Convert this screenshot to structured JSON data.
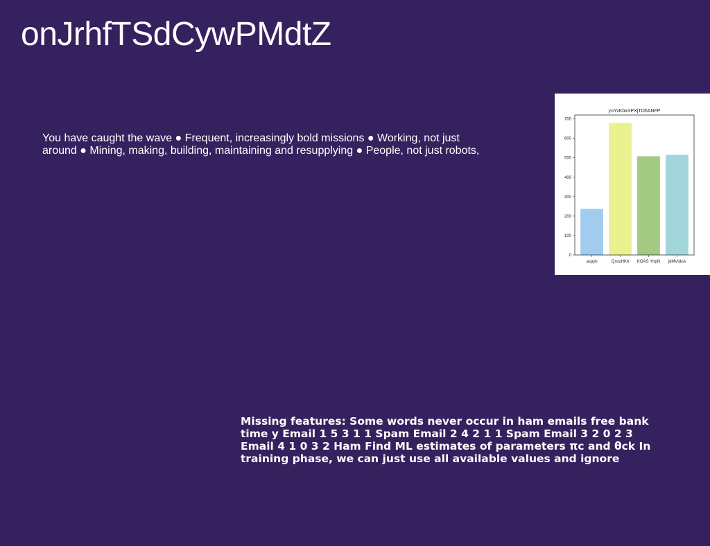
{
  "slide": {
    "title": "onJrhfTSdCywPMdtZ",
    "body_text": "You have caught the wave ● Frequent, increasingly bold missions ● Working, not just around ● Mining, making, building, maintaining and resupplying ● People, not just robots,",
    "bottom_text": "Missing features: Some words never occur in ham emails free bank time y Email 1 5 3 1 1 Spam Email 2 4 2 1 1 Spam Email 3 2 0 2 3 Email 4 1 0 3 2 Ham Find ML estimates of parameters πc and θck In training phase, we can just use all available values and ignore"
  },
  "chart_data": {
    "type": "bar",
    "title": "yuYvKbxXPXjTOhANFP",
    "categories": [
      "aspyb",
      "QsozHKh",
      "KGAS YhpN",
      "jdMVldcA"
    ],
    "values": [
      237,
      680,
      508,
      515
    ],
    "colors": [
      "#a1ccef",
      "#e9f28e",
      "#a4c982",
      "#a3d6db"
    ],
    "xlabel": "",
    "ylabel": "",
    "ylim": [
      0,
      720
    ],
    "yticks": [
      0,
      100,
      200,
      300,
      400,
      500,
      600,
      700
    ],
    "grid": false
  }
}
